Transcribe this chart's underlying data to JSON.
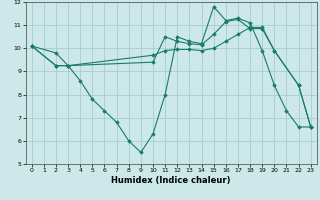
{
  "xlabel": "Humidex (Indice chaleur)",
  "xlim": [
    -0.5,
    23.5
  ],
  "ylim": [
    5,
    12
  ],
  "yticks": [
    5,
    6,
    7,
    8,
    9,
    10,
    11,
    12
  ],
  "xticks": [
    0,
    1,
    2,
    3,
    4,
    5,
    6,
    7,
    8,
    9,
    10,
    11,
    12,
    13,
    14,
    15,
    16,
    17,
    18,
    19,
    20,
    21,
    22,
    23
  ],
  "line_color": "#1a7a6e",
  "bg_color": "#cce8e8",
  "grid_color": "#aacccc",
  "lines": [
    {
      "x": [
        0,
        2,
        3,
        4,
        5,
        6,
        7,
        8,
        9,
        10,
        11,
        12,
        13,
        14,
        15,
        16,
        17,
        18,
        19,
        20,
        21,
        22,
        23
      ],
      "y": [
        10.1,
        9.8,
        9.25,
        8.6,
        7.8,
        7.3,
        6.8,
        6.0,
        5.5,
        6.3,
        8.0,
        10.5,
        10.3,
        10.2,
        11.8,
        11.2,
        11.3,
        11.1,
        9.9,
        8.4,
        7.3,
        6.6,
        6.6
      ]
    },
    {
      "x": [
        0,
        2,
        3,
        10,
        11,
        12,
        13,
        14,
        15,
        16,
        17,
        18,
        19,
        20,
        22,
        23
      ],
      "y": [
        10.1,
        9.25,
        9.25,
        9.4,
        10.5,
        10.3,
        10.2,
        10.15,
        10.6,
        11.15,
        11.25,
        10.85,
        10.85,
        9.9,
        8.4,
        6.6
      ]
    },
    {
      "x": [
        0,
        2,
        3,
        10,
        11,
        12,
        13,
        14,
        15,
        16,
        17,
        18,
        19,
        20,
        22,
        23
      ],
      "y": [
        10.1,
        9.25,
        9.25,
        9.7,
        9.9,
        9.95,
        9.95,
        9.9,
        10.0,
        10.3,
        10.6,
        10.9,
        10.9,
        9.9,
        8.4,
        6.6
      ]
    }
  ]
}
